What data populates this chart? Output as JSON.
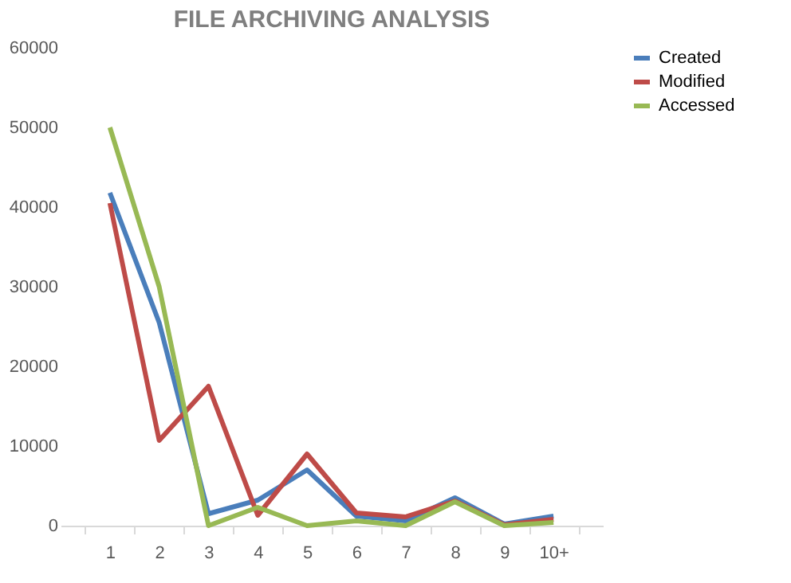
{
  "chart_data": {
    "type": "line",
    "title": "FILE ARCHIVING ANALYSIS",
    "categories": [
      "1",
      "2",
      "3",
      "4",
      "5",
      "6",
      "7",
      "8",
      "9",
      "10+"
    ],
    "series": [
      {
        "name": "Created",
        "color": "#4a7ebb",
        "values": [
          41800,
          25500,
          1500,
          3200,
          7000,
          1200,
          600,
          3500,
          200,
          1200
        ]
      },
      {
        "name": "Modified",
        "color": "#be4b48",
        "values": [
          40500,
          10700,
          17500,
          1300,
          9000,
          1600,
          1100,
          3100,
          100,
          800
        ]
      },
      {
        "name": "Accessed",
        "color": "#98b954",
        "values": [
          50000,
          30000,
          0,
          2300,
          0,
          600,
          0,
          3000,
          0,
          400
        ]
      }
    ],
    "ylim": [
      0,
      60000
    ],
    "yticks": [
      0,
      10000,
      20000,
      30000,
      40000,
      50000,
      60000
    ],
    "grid": false,
    "legend": "right",
    "marker": "none",
    "line_style": "solid"
  }
}
